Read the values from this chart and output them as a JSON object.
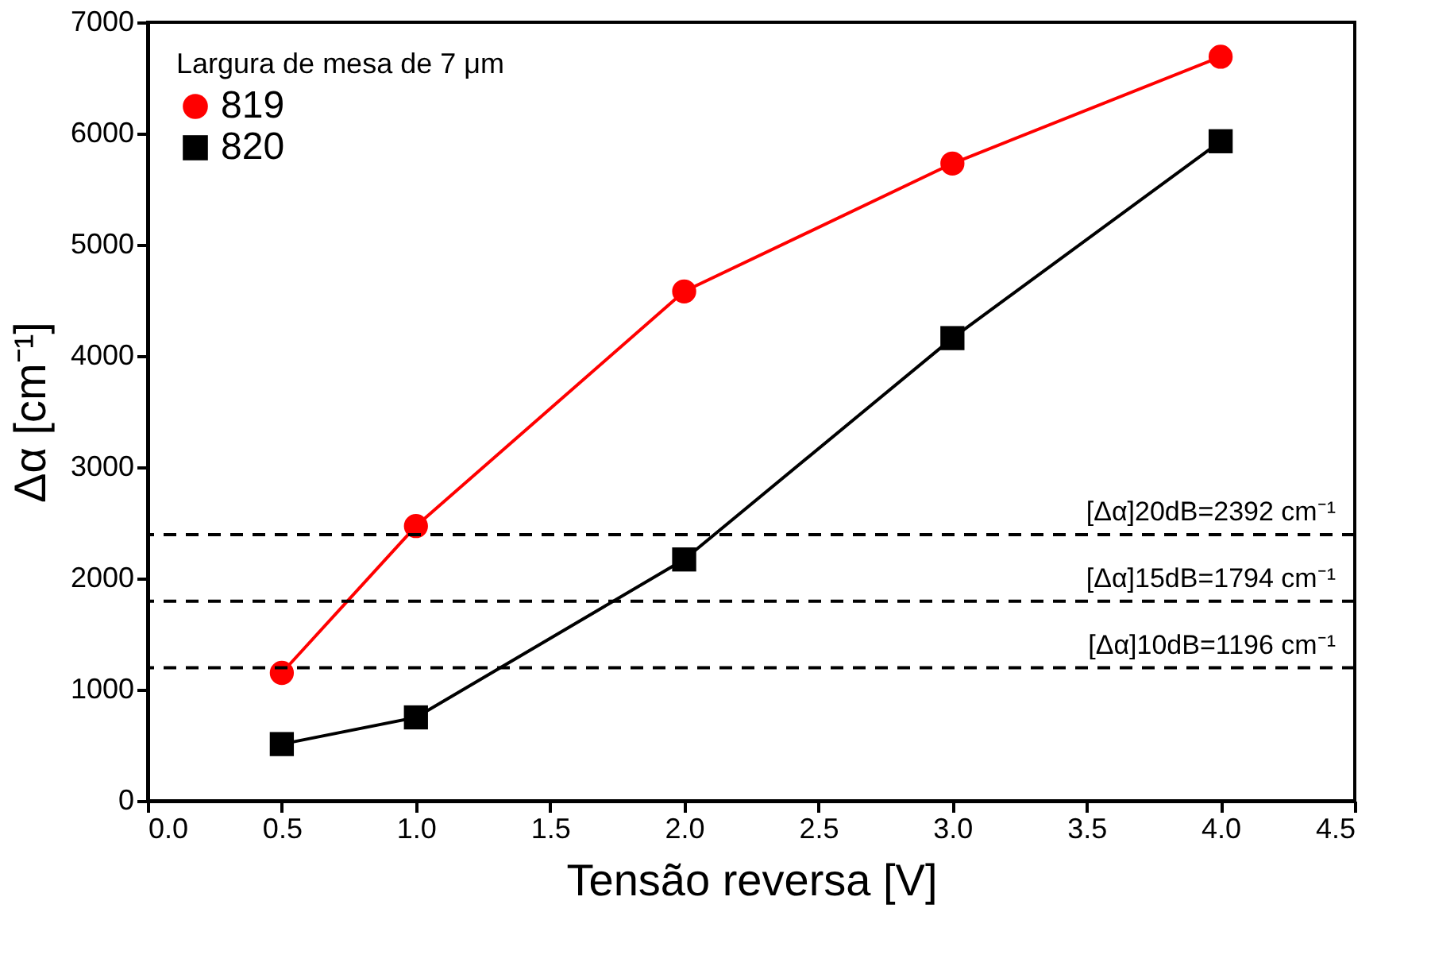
{
  "chart_data": {
    "type": "line",
    "xlabel": "Tensão reversa [V]",
    "ylabel": "Δα  [cm⁻¹]",
    "legend_title": "Largura de mesa de 7 μm",
    "legend": "top left",
    "grid": false,
    "line_style": "solid",
    "xlim": [
      0,
      4.5
    ],
    "xticks": [
      {
        "value": 0,
        "label": "0.0"
      },
      {
        "value": 0.5,
        "label": "0.5"
      },
      {
        "value": 1,
        "label": "1.0"
      },
      {
        "value": 1.5,
        "label": "1.5"
      },
      {
        "value": 2,
        "label": "2.0"
      },
      {
        "value": 2.5,
        "label": "2.5"
      },
      {
        "value": 3,
        "label": "3.0"
      },
      {
        "value": 3.5,
        "label": "3.5"
      },
      {
        "value": 4,
        "label": "4.0"
      },
      {
        "value": 4.5,
        "label": "4.5"
      }
    ],
    "ylim": [
      0,
      7000
    ],
    "yticks": [
      0,
      1000,
      2000,
      3000,
      4000,
      5000,
      6000,
      7000
    ],
    "x": [
      0.5,
      1,
      2,
      3,
      4
    ],
    "series": [
      {
        "name": "819",
        "color": "#ff0000",
        "marker": "circle",
        "values": [
          1150,
          2470,
          4580,
          5730,
          6690
        ]
      },
      {
        "name": "820",
        "color": "#000000",
        "marker": "square",
        "values": [
          510,
          750,
          2170,
          4160,
          5930
        ]
      }
    ],
    "ref_lines": [
      {
        "axis": "y",
        "value": 2392,
        "label": "[Δα]20dB=2392 cm⁻¹",
        "color": "#000000",
        "line_style": "dashed"
      },
      {
        "axis": "y",
        "value": 1794,
        "label": "[Δα]15dB=1794 cm⁻¹",
        "color": "#000000",
        "line_style": "dashed"
      },
      {
        "axis": "y",
        "value": 1196,
        "label": "[Δα]10dB=1196 cm⁻¹",
        "color": "#000000",
        "line_style": "dashed"
      }
    ]
  }
}
